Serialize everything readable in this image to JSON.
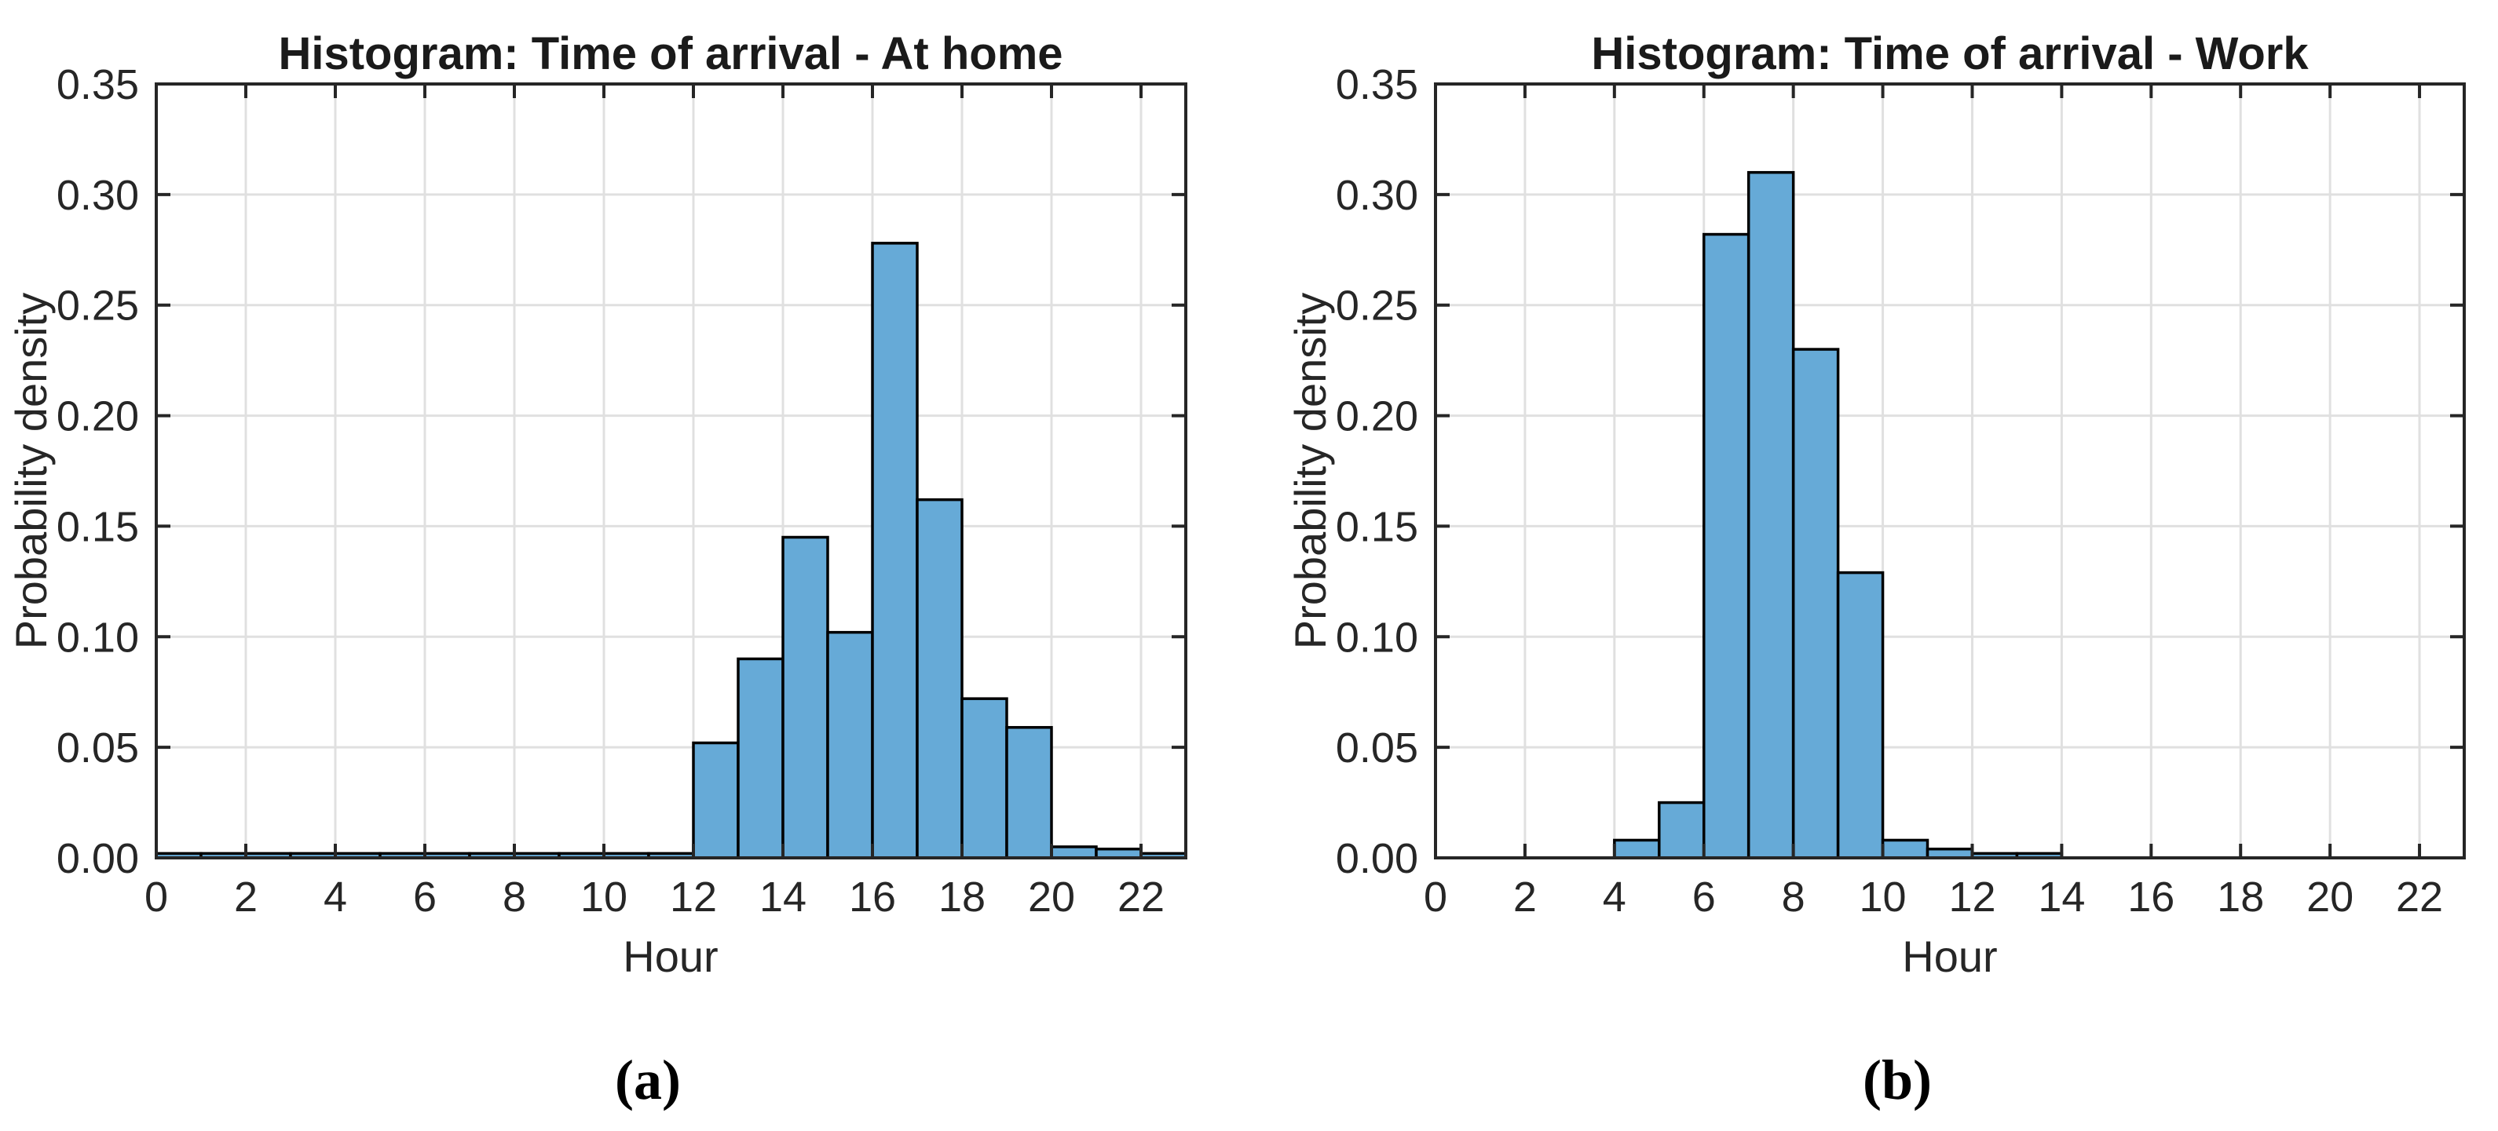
{
  "figure": {
    "background": "#ffffff",
    "axis_color": "#262626",
    "grid_color": "#e0e0e0",
    "tick_label_color": "#262626",
    "tick_font_size": 54
  },
  "chart_data": [
    {
      "type": "bar",
      "subtype": "histogram",
      "title": "Histogram: Time of arrival - At home",
      "panel_label": "(a)",
      "xlabel": "Hour",
      "ylabel": "Probability density",
      "bin_width_hours": 1,
      "bin_start_hours": [
        0,
        1,
        2,
        3,
        4,
        5,
        6,
        7,
        8,
        9,
        10,
        11,
        12,
        13,
        14,
        15,
        16,
        17,
        18,
        19,
        20,
        21,
        22
      ],
      "values": [
        0.002,
        0.002,
        0.002,
        0.002,
        0.002,
        0.002,
        0.002,
        0.002,
        0.002,
        0.002,
        0.002,
        0.002,
        0.052,
        0.09,
        0.145,
        0.102,
        0.278,
        0.162,
        0.072,
        0.059,
        0.005,
        0.004,
        0.002
      ],
      "xlim": [
        0,
        23
      ],
      "ylim": [
        0,
        0.35
      ],
      "xticks": [
        0,
        2,
        4,
        6,
        8,
        10,
        12,
        14,
        16,
        18,
        20,
        22
      ],
      "ytick_values": [
        0,
        0.05,
        0.1,
        0.15,
        0.2,
        0.25,
        0.3,
        0.35
      ],
      "ytick_labels": [
        "0.00",
        "0.05",
        "0.10",
        "0.15",
        "0.20",
        "0.25",
        "0.30",
        "0.35"
      ],
      "grid": true,
      "bar_fill": "#66aad7",
      "bar_edge": "#000000"
    },
    {
      "type": "bar",
      "subtype": "histogram",
      "title": "Histogram: Time of arrival - Work",
      "panel_label": "(b)",
      "xlabel": "Hour",
      "ylabel": "Probability density",
      "bin_width_hours": 1,
      "bin_start_hours": [
        0,
        1,
        2,
        3,
        4,
        5,
        6,
        7,
        8,
        9,
        10,
        11,
        12,
        13,
        14,
        15,
        16,
        17,
        18,
        19,
        20,
        21,
        22
      ],
      "values": [
        0,
        0,
        0,
        0,
        0.008,
        0.025,
        0.282,
        0.31,
        0.23,
        0.129,
        0.008,
        0.004,
        0.002,
        0.002,
        0,
        0,
        0,
        0,
        0,
        0,
        0,
        0,
        0
      ],
      "xlim": [
        0,
        23
      ],
      "ylim": [
        0,
        0.35
      ],
      "xticks": [
        0,
        2,
        4,
        6,
        8,
        10,
        12,
        14,
        16,
        18,
        20,
        22
      ],
      "ytick_values": [
        0,
        0.05,
        0.1,
        0.15,
        0.2,
        0.25,
        0.3,
        0.35
      ],
      "ytick_labels": [
        "0.00",
        "0.05",
        "0.10",
        "0.15",
        "0.20",
        "0.25",
        "0.30",
        "0.35"
      ],
      "grid": true,
      "bar_fill": "#66aad7",
      "bar_edge": "#000000"
    }
  ]
}
